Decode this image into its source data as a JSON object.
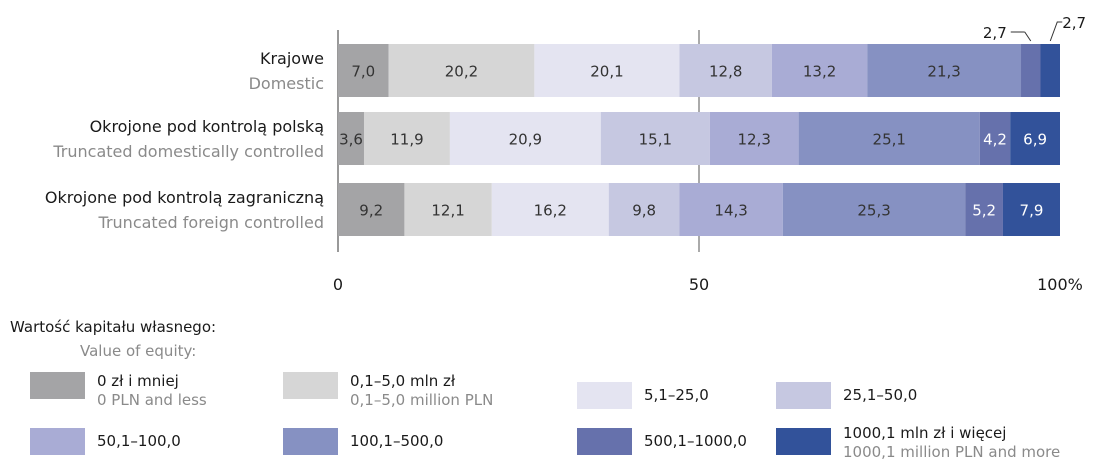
{
  "chart_data": {
    "type": "bar",
    "orientation": "horizontal",
    "stacked": true,
    "xlim": [
      0,
      100
    ],
    "x_ticks": [
      "0",
      "50",
      "100%"
    ],
    "categories": [
      {
        "pl": "Krajowe",
        "en": "Domestic"
      },
      {
        "pl": "Okrojone pod kontrolą polską",
        "en": "Truncated domestically controlled"
      },
      {
        "pl": "Okrojone pod kontrolą zagraniczną",
        "en": "Truncated foreign controlled"
      }
    ],
    "series": [
      {
        "name": "0 zł i mniej",
        "name_en": "0 PLN and less",
        "color": "#a4a4a6",
        "values": [
          7.0,
          3.6,
          9.2
        ],
        "labels": [
          "7,0",
          "3,6",
          "9,2"
        ]
      },
      {
        "name": "0,1–5,0 mln zł",
        "name_en": "0,1–5,0 million PLN",
        "color": "#d6d6d6",
        "values": [
          20.2,
          11.9,
          12.1
        ],
        "labels": [
          "20,2",
          "11,9",
          "12,1"
        ]
      },
      {
        "name": "5,1–25,0",
        "name_en": "",
        "color": "#e4e4f1",
        "values": [
          20.1,
          20.9,
          16.2
        ],
        "labels": [
          "20,1",
          "20,9",
          "16,2"
        ]
      },
      {
        "name": "25,1–50,0",
        "name_en": "",
        "color": "#c6c8e1",
        "values": [
          12.8,
          15.1,
          9.8
        ],
        "labels": [
          "12,8",
          "15,1",
          "9,8"
        ]
      },
      {
        "name": "50,1–100,0",
        "name_en": "",
        "color": "#a9acd5",
        "values": [
          13.2,
          12.3,
          14.3
        ],
        "labels": [
          "13,2",
          "12,3",
          "14,3"
        ]
      },
      {
        "name": "100,1–500,0",
        "name_en": "",
        "color": "#8691c2",
        "values": [
          21.3,
          25.1,
          25.3
        ],
        "labels": [
          "21,3",
          "25,1",
          "25,3"
        ]
      },
      {
        "name": "500,1–1000,0",
        "name_en": "",
        "color": "#6671ac",
        "values": [
          2.7,
          4.2,
          5.2
        ],
        "labels": [
          "2,7",
          "4,2",
          "5,2"
        ]
      },
      {
        "name": "1000,1 mln zł i więcej",
        "name_en": "1000,1 million PLN and more",
        "color": "#32529a",
        "values": [
          2.7,
          6.9,
          7.9
        ],
        "labels": [
          "2,7",
          "6,9",
          "7,9"
        ]
      }
    ],
    "label_text_dark": "#333333",
    "label_text_light": "#ffffff",
    "callouts": [
      {
        "row": 0,
        "series": 6,
        "text": "2,7"
      },
      {
        "row": 0,
        "series": 7,
        "text": "2,7"
      }
    ]
  },
  "legend": {
    "title": "Wartość kapitału własnego:",
    "subtitle": "Value of equity:"
  }
}
